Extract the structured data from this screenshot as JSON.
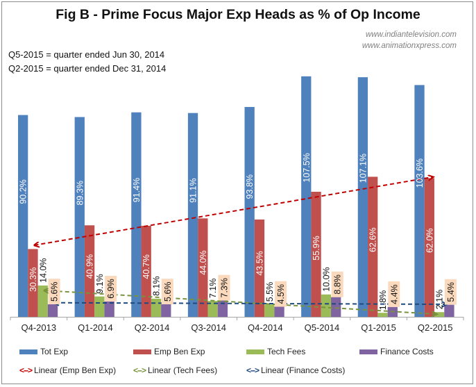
{
  "chart_data": {
    "type": "bar",
    "title": "Fig B - Prime Focus Major Exp Heads as % of Op Income",
    "xlabel": "",
    "ylabel": "",
    "ylim": [
      0,
      110
    ],
    "grid": false,
    "legend_position": "bottom",
    "categories": [
      "Q4-2013",
      "Q1-2014",
      "Q2-2014",
      "Q3-2014",
      "Q4-2014",
      "Q5-2014",
      "Q1-2015",
      "Q2-2015"
    ],
    "series": [
      {
        "name": "Tot Exp",
        "color": "#4f81bd",
        "values": [
          90.2,
          89.3,
          91.4,
          91.1,
          93.8,
          107.5,
          107.1,
          103.6
        ],
        "labels": [
          "90.2%",
          "89.3%",
          "91.4%",
          "91.1%",
          "93.8%",
          "107.5%",
          "107.1%",
          "103.6%"
        ]
      },
      {
        "name": "Emp Ben Exp",
        "color": "#c0504d",
        "values": [
          30.3,
          40.9,
          40.7,
          44.0,
          43.5,
          55.9,
          62.6,
          62.0
        ],
        "labels": [
          "30.3%",
          "40.9%",
          "40.7%",
          "44.0%",
          "43.5%",
          "55.9%",
          "62.6%",
          "62.0%"
        ]
      },
      {
        "name": "Tech Fees",
        "color": "#9bbb59",
        "values": [
          14.0,
          9.1,
          8.1,
          7.1,
          5.5,
          10.0,
          1.8,
          2.1
        ],
        "labels": [
          "14.0%",
          "9.1%",
          "8.1%",
          "7.1%",
          "5.5%",
          "10.0%",
          "1.8%",
          "2.1%"
        ]
      },
      {
        "name": "Finance Costs",
        "color": "#8064a2",
        "values": [
          5.6,
          6.9,
          5.6,
          7.3,
          4.5,
          8.8,
          4.4,
          5.4
        ],
        "labels": [
          "5.6%",
          "6.9%",
          "5.6%",
          "7.3%",
          "4.5%",
          "8.8%",
          "4.4%",
          "5.4%"
        ]
      }
    ],
    "trendlines": [
      {
        "name": "Linear (Emp Ben Exp)",
        "series": "Emp Ben Exp",
        "color": "#c00000",
        "start": 32.0,
        "end": 62.5
      },
      {
        "name": "Linear (Tech Fees)",
        "series": "Tech Fees",
        "color": "#77933c",
        "start": 11.8,
        "end": 1.2
      },
      {
        "name": "Linear (Finance Costs)",
        "series": "Finance Costs",
        "color": "#1f497d",
        "start": 6.3,
        "end": 5.6
      }
    ],
    "label_box_color": "#fad9bd",
    "annotations": [
      "www.indiantelevision.com",
      "www.animationxpress.com",
      "Q5-2015 = quarter ended Jun 30, 2014",
      "Q2-2015 = quarter ended Dec 31, 2014"
    ]
  },
  "header": {
    "title": "Fig B - Prime Focus Major Exp Heads as % of Op Income",
    "site1": "www.indiantelevision.com",
    "site2": "www.animationxpress.com",
    "note1": "Q5-2015 = quarter ended Jun 30, 2014",
    "note2": "Q2-2015 = quarter ended Dec 31, 2014"
  },
  "legend": {
    "series": [
      "Tot Exp",
      "Emp Ben Exp",
      "Tech Fees",
      "Finance Costs"
    ],
    "trends": [
      "Linear (Emp Ben Exp)",
      "Linear (Tech Fees)",
      "Linear (Finance Costs)"
    ],
    "arrow_glyph": "<-->"
  }
}
